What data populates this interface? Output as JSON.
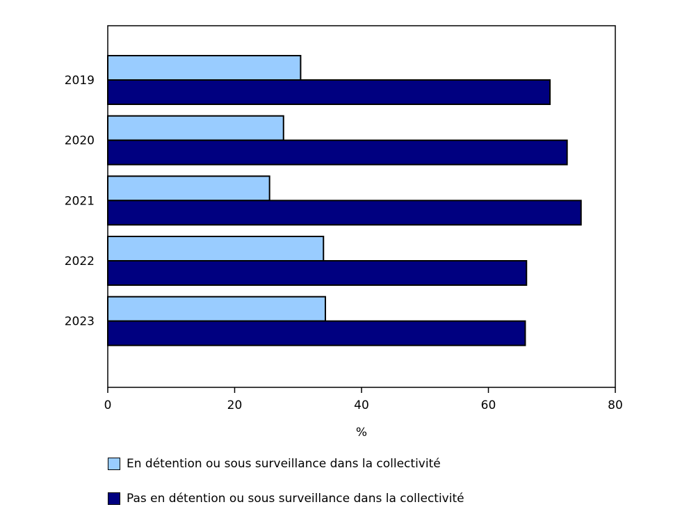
{
  "chart_data": {
    "type": "bar",
    "orientation": "horizontal",
    "categories": [
      "2019",
      "2020",
      "2021",
      "2022",
      "2023"
    ],
    "series": [
      {
        "name": "En détention ou sous surveillance dans la collectivité",
        "color": "#99ccff",
        "values": [
          30.4,
          27.7,
          25.5,
          34.0,
          34.3
        ]
      },
      {
        "name": "Pas en détention ou sous surveillance dans la collectivité",
        "color": "#000080",
        "values": [
          69.7,
          72.4,
          74.6,
          66.0,
          65.8
        ]
      }
    ],
    "xlabel": "%",
    "ylabel": "",
    "xlim": [
      0,
      80
    ],
    "xticks": [
      "0",
      "20",
      "40",
      "60",
      "80"
    ],
    "grid": false,
    "legend_position": "bottom"
  }
}
